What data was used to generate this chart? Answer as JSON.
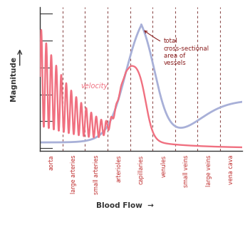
{
  "background_color": "#ffffff",
  "vessel_labels": [
    "aorta",
    "large arteries",
    "small arteries",
    "arterioles",
    "capillaries",
    "venules",
    "small veins",
    "large veins",
    "vena cava"
  ],
  "dashed_line_color": "#7B3030",
  "velocity_color": "#F07080",
  "area_color": "#A8B0D8",
  "annotation_color": "#8B2020",
  "annotation_text": "total\ncross-sectional\narea of\nvessels",
  "velocity_label": "velocity",
  "xlabel": "Blood Flow",
  "ylabel": "Magnitude",
  "n_vessels": 9
}
